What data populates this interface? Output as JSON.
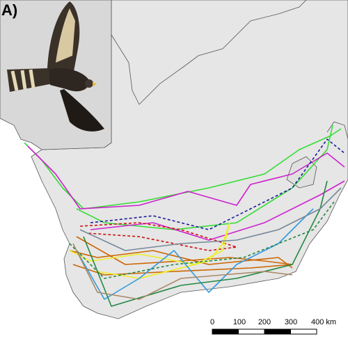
{
  "panel_label": "A)",
  "scale_bar": {
    "labels": [
      "0",
      "100",
      "200",
      "300",
      "400 km"
    ]
  }
}
